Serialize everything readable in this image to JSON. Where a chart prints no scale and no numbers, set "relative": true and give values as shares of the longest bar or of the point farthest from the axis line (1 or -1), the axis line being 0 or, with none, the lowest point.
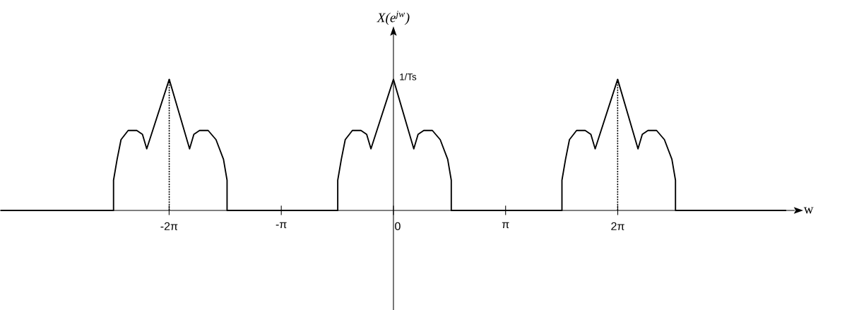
{
  "chart_data": {
    "type": "line",
    "relative": true,
    "xlabel": "w",
    "ylabel": "X(e$^{jw}$)",
    "xlim": [
      -11.02,
      11.24
    ],
    "xticks": [
      {
        "value": -6.2832,
        "label": "-2π"
      },
      {
        "value": -3.1416,
        "label": "-π"
      },
      {
        "value": 0,
        "label": "0"
      },
      {
        "value": 3.1416,
        "label": "π"
      },
      {
        "value": 6.2832,
        "label": "2π"
      }
    ],
    "annotations": [
      {
        "text": "1/Ts",
        "x": 0,
        "y": 1.02
      }
    ],
    "series": [
      {
        "color": "#000000",
        "line_style": "solid",
        "x": [
          -11.0,
          -7.84,
          -7.84,
          -7.74,
          -7.63,
          -7.43,
          -7.19,
          -7.03,
          -6.91,
          -6.28,
          -5.71,
          -5.59,
          -5.43,
          -5.19,
          -4.97,
          -4.76,
          -4.66,
          -4.66,
          -1.56,
          -1.56,
          -1.46,
          -1.35,
          -1.15,
          -0.91,
          -0.75,
          -0.63,
          0,
          0.57,
          0.69,
          0.85,
          1.09,
          1.31,
          1.52,
          1.62,
          1.62,
          4.72,
          4.72,
          4.82,
          4.93,
          5.13,
          5.37,
          5.53,
          5.65,
          6.28,
          6.85,
          6.97,
          7.13,
          7.37,
          7.59,
          7.8,
          7.9,
          7.9,
          11.0
        ],
        "values": [
          0,
          0,
          0.23,
          0.39,
          0.54,
          0.61,
          0.61,
          0.58,
          0.47,
          1,
          0.47,
          0.58,
          0.61,
          0.61,
          0.54,
          0.39,
          0.23,
          0,
          0,
          0.23,
          0.39,
          0.54,
          0.61,
          0.61,
          0.58,
          0.47,
          1,
          0.47,
          0.58,
          0.61,
          0.61,
          0.54,
          0.39,
          0.23,
          0,
          0,
          0.23,
          0.39,
          0.54,
          0.61,
          0.61,
          0.58,
          0.47,
          1,
          0.47,
          0.58,
          0.61,
          0.61,
          0.54,
          0.39,
          0.23,
          0,
          0
        ]
      }
    ]
  }
}
